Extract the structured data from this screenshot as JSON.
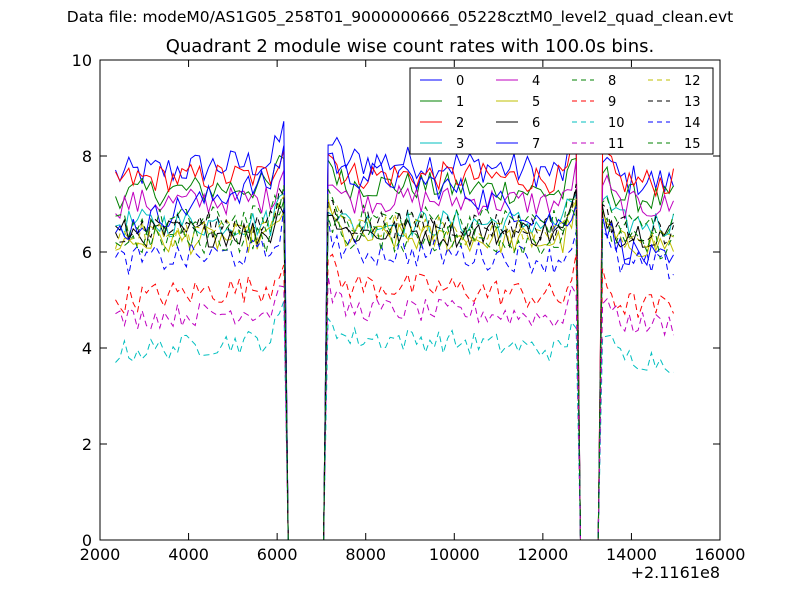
{
  "suptitle": "Data file: modeM0/AS1G05_258T01_9000000666_05228cztM0_level2_quad_clean.evt",
  "chart_data": {
    "type": "line",
    "title": "Quadrant 2 module wise count rates with 100.0s bins.",
    "xlabel": "",
    "ylabel": "",
    "xlim": [
      2000,
      16000
    ],
    "ylim": [
      0,
      10
    ],
    "x_offset_label": "+2.1161e8",
    "xticks": [
      2000,
      4000,
      6000,
      8000,
      10000,
      12000,
      14000,
      16000
    ],
    "yticks": [
      0,
      2,
      4,
      6,
      8,
      10
    ],
    "legend_position": "top-right",
    "gaps": [
      [
        6250,
        7100
      ],
      [
        12850,
        13300
      ]
    ],
    "x_start": 2350,
    "x_end": 14950,
    "bin_width": 100,
    "series": [
      {
        "name": "0",
        "color": "#0000ff",
        "dash": "solid",
        "base": 7.6,
        "trend": 0.3,
        "noise": 0.35
      },
      {
        "name": "1",
        "color": "#008000",
        "dash": "solid",
        "base": 7.2,
        "trend": 0.2,
        "noise": 0.3
      },
      {
        "name": "2",
        "color": "#ff0000",
        "dash": "solid",
        "base": 7.5,
        "trend": 0.1,
        "noise": 0.3
      },
      {
        "name": "3",
        "color": "#00bfbf",
        "dash": "solid",
        "base": 6.6,
        "trend": 0.0,
        "noise": 0.3
      },
      {
        "name": "4",
        "color": "#bf00bf",
        "dash": "solid",
        "base": 7.0,
        "trend": 0.1,
        "noise": 0.3
      },
      {
        "name": "5",
        "color": "#bfbf00",
        "dash": "solid",
        "base": 6.2,
        "trend": 0.1,
        "noise": 0.3
      },
      {
        "name": "6",
        "color": "#000000",
        "dash": "solid",
        "base": 6.4,
        "trend": 0.0,
        "noise": 0.3
      },
      {
        "name": "7",
        "color": "#0000ff",
        "dash": "solid",
        "base": 6.4,
        "trend": 1.2,
        "noise": 0.3
      },
      {
        "name": "8",
        "color": "#008000",
        "dash": "dashed",
        "base": 6.6,
        "trend": 0.1,
        "noise": 0.3
      },
      {
        "name": "9",
        "color": "#ff0000",
        "dash": "dashed",
        "base": 5.0,
        "trend": 0.3,
        "noise": 0.3
      },
      {
        "name": "10",
        "color": "#00bfbf",
        "dash": "dashed",
        "base": 3.9,
        "trend": 0.3,
        "noise": 0.25
      },
      {
        "name": "11",
        "color": "#bf00bf",
        "dash": "dashed",
        "base": 4.6,
        "trend": 0.2,
        "noise": 0.25
      },
      {
        "name": "12",
        "color": "#bfbf00",
        "dash": "dashed",
        "base": 6.3,
        "trend": 0.2,
        "noise": 0.3
      },
      {
        "name": "13",
        "color": "#000000",
        "dash": "dashed",
        "base": 6.5,
        "trend": 0.1,
        "noise": 0.3
      },
      {
        "name": "14",
        "color": "#0000ff",
        "dash": "dashed",
        "base": 5.8,
        "trend": 0.2,
        "noise": 0.3
      },
      {
        "name": "15",
        "color": "#008000",
        "dash": "dashed",
        "base": 6.2,
        "trend": 0.1,
        "noise": 0.3
      }
    ]
  }
}
